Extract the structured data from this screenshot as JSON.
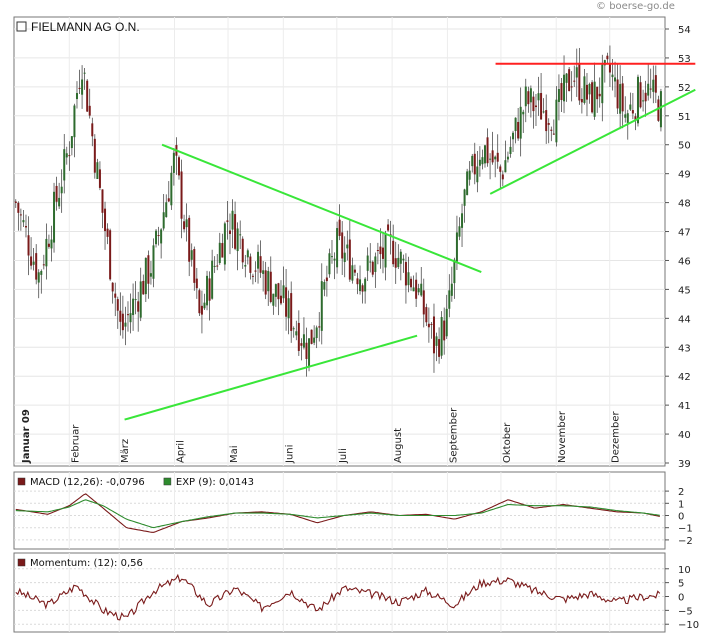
{
  "watermark": "boerse-go.de",
  "watermark_icon": "copyright-icon",
  "chart_data": [
    {
      "type": "candlestick",
      "title": "FIELMANN AG O.N.",
      "ylim": [
        39,
        54
      ],
      "yticks": [
        39,
        40,
        41,
        42,
        43,
        44,
        45,
        46,
        47,
        48,
        49,
        50,
        51,
        52,
        53,
        54
      ],
      "xlabels": [
        "Januar 09",
        "Februar",
        "März",
        "April",
        "Mai",
        "Juni",
        "Juli",
        "August",
        "September",
        "Oktober",
        "November",
        "Dezember"
      ],
      "x": [
        "2009-01-02",
        "2009-01-15",
        "2009-02-01",
        "2009-02-08",
        "2009-02-20",
        "2009-03-02",
        "2009-03-09",
        "2009-03-20",
        "2009-04-01",
        "2009-04-15",
        "2009-05-01",
        "2009-05-15",
        "2009-06-01",
        "2009-06-15",
        "2009-07-01",
        "2009-07-15",
        "2009-08-01",
        "2009-08-15",
        "2009-08-25",
        "2009-09-01",
        "2009-09-10",
        "2009-09-20",
        "2009-10-01",
        "2009-10-15",
        "2009-11-01",
        "2009-11-10",
        "2009-11-20",
        "2009-12-01",
        "2009-12-10",
        "2009-12-20",
        "2009-12-30"
      ],
      "close": [
        48.0,
        45.5,
        50.0,
        53.0,
        47.5,
        43.5,
        44.5,
        46.0,
        49.5,
        44.0,
        47.5,
        46.0,
        44.5,
        43.0,
        46.5,
        45.5,
        46.5,
        45.0,
        43.0,
        44.0,
        48.0,
        50.0,
        49.0,
        51.5,
        51.0,
        52.5,
        51.5,
        52.5,
        51.0,
        52.0,
        51.3
      ],
      "color_up": "#2e6b2e",
      "color_down": "#7a1a1a",
      "trendlines": [
        {
          "color": "#39e639",
          "from": [
            "2009-03-04",
            40.5
          ],
          "to": [
            "2009-08-15",
            43.4
          ]
        },
        {
          "color": "#39e639",
          "from": [
            "2009-03-25",
            50.0
          ],
          "to": [
            "2009-09-20",
            45.6
          ]
        },
        {
          "color": "#39e639",
          "from": [
            "2009-09-25",
            48.3
          ],
          "to": [
            "2010-01-18",
            51.9
          ]
        },
        {
          "color": "#ff2020",
          "from": [
            "2009-09-28",
            52.8
          ],
          "to": [
            "2010-01-18",
            52.8
          ]
        }
      ]
    },
    {
      "type": "line",
      "legend": [
        {
          "label": "MACD (12,26): -0,0796",
          "color": "#7a1a1a"
        },
        {
          "label": "EXP (9): 0,0143",
          "color": "#2e8b2e"
        }
      ],
      "ylim": [
        -2.5,
        2.5
      ],
      "yticks": [
        -2,
        -1,
        0,
        1,
        2
      ],
      "x": [
        "2009-01-02",
        "2009-01-20",
        "2009-02-01",
        "2009-02-10",
        "2009-02-20",
        "2009-03-05",
        "2009-03-20",
        "2009-04-05",
        "2009-04-20",
        "2009-05-05",
        "2009-05-20",
        "2009-06-05",
        "2009-06-20",
        "2009-07-05",
        "2009-07-20",
        "2009-08-05",
        "2009-08-20",
        "2009-09-05",
        "2009-09-20",
        "2009-10-05",
        "2009-10-20",
        "2009-11-05",
        "2009-11-20",
        "2009-12-05",
        "2009-12-20",
        "2009-12-30"
      ],
      "series": [
        {
          "name": "MACD (12,26)",
          "color": "#7a1a1a",
          "values": [
            0.5,
            0.1,
            0.8,
            1.8,
            0.6,
            -1.0,
            -1.4,
            -0.5,
            -0.2,
            0.2,
            0.3,
            0.1,
            -0.6,
            0.0,
            0.3,
            0.0,
            0.1,
            -0.3,
            0.3,
            1.3,
            0.6,
            0.9,
            0.6,
            0.3,
            0.2,
            -0.1
          ]
        },
        {
          "name": "EXP (9)",
          "color": "#2e8b2e",
          "values": [
            0.4,
            0.3,
            0.7,
            1.3,
            0.8,
            -0.3,
            -1.0,
            -0.5,
            -0.1,
            0.2,
            0.2,
            0.1,
            -0.2,
            0.0,
            0.2,
            0.0,
            0.0,
            0.0,
            0.2,
            0.9,
            0.8,
            0.8,
            0.7,
            0.4,
            0.2,
            0.0
          ]
        }
      ]
    },
    {
      "type": "line",
      "legend": [
        {
          "label": "Momentum: (12): 0,56",
          "color": "#7a1a1a"
        }
      ],
      "ylim": [
        -11,
        11
      ],
      "yticks": [
        -10,
        -5,
        0,
        5,
        10
      ],
      "x": [
        "2009-01-02",
        "2009-01-20",
        "2009-02-05",
        "2009-02-20",
        "2009-03-05",
        "2009-03-20",
        "2009-04-05",
        "2009-04-20",
        "2009-05-05",
        "2009-05-20",
        "2009-06-05",
        "2009-06-20",
        "2009-07-05",
        "2009-07-20",
        "2009-08-05",
        "2009-08-20",
        "2009-09-05",
        "2009-09-20",
        "2009-10-05",
        "2009-10-20",
        "2009-11-05",
        "2009-11-20",
        "2009-12-05",
        "2009-12-20",
        "2009-12-30"
      ],
      "series": [
        {
          "name": "Momentum",
          "color": "#7a1a1a",
          "values": [
            2,
            -3,
            4,
            -5,
            -8,
            2,
            7,
            -3,
            3,
            -4,
            2,
            -5,
            3,
            1,
            -2,
            2,
            -3,
            5,
            6,
            2,
            -1,
            1,
            -2,
            0,
            0.56
          ]
        }
      ]
    }
  ]
}
